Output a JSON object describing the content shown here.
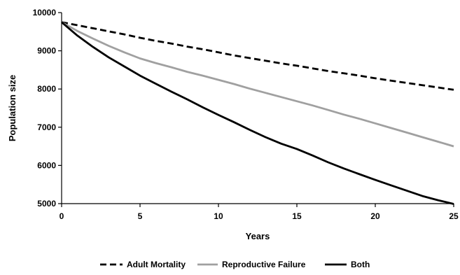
{
  "chart_data": {
    "type": "line",
    "title": "",
    "xlabel": "Years",
    "ylabel": "Population size",
    "xlim": [
      0,
      25
    ],
    "ylim": [
      5000,
      10000
    ],
    "x_ticks": [
      0,
      5,
      10,
      15,
      20,
      25
    ],
    "y_ticks": [
      5000,
      6000,
      7000,
      8000,
      9000,
      10000
    ],
    "grid": false,
    "legend_position": "bottom",
    "x": [
      0,
      1,
      2,
      3,
      4,
      5,
      6,
      7,
      8,
      9,
      10,
      11,
      12,
      13,
      14,
      15,
      16,
      17,
      18,
      19,
      20,
      21,
      22,
      23,
      24,
      25
    ],
    "series": [
      {
        "name": "Adult Mortality",
        "style": "dashed",
        "color": "#000000",
        "values": [
          9750,
          9670,
          9590,
          9510,
          9430,
          9340,
          9260,
          9190,
          9110,
          9040,
          8960,
          8880,
          8810,
          8740,
          8670,
          8610,
          8540,
          8470,
          8410,
          8350,
          8280,
          8220,
          8160,
          8100,
          8040,
          7980
        ]
      },
      {
        "name": "Reproductive Failure",
        "style": "solid",
        "color": "#a0a0a0",
        "values": [
          9750,
          9520,
          9320,
          9130,
          8960,
          8800,
          8680,
          8570,
          8450,
          8350,
          8240,
          8130,
          8010,
          7900,
          7790,
          7680,
          7570,
          7450,
          7330,
          7220,
          7100,
          6980,
          6860,
          6740,
          6620,
          6500
        ]
      },
      {
        "name": "Both",
        "style": "solid",
        "color": "#000000",
        "values": [
          9750,
          9400,
          9100,
          8830,
          8590,
          8350,
          8140,
          7930,
          7730,
          7520,
          7320,
          7130,
          6930,
          6740,
          6570,
          6430,
          6260,
          6080,
          5920,
          5770,
          5620,
          5480,
          5340,
          5200,
          5090,
          4990
        ]
      }
    ]
  }
}
